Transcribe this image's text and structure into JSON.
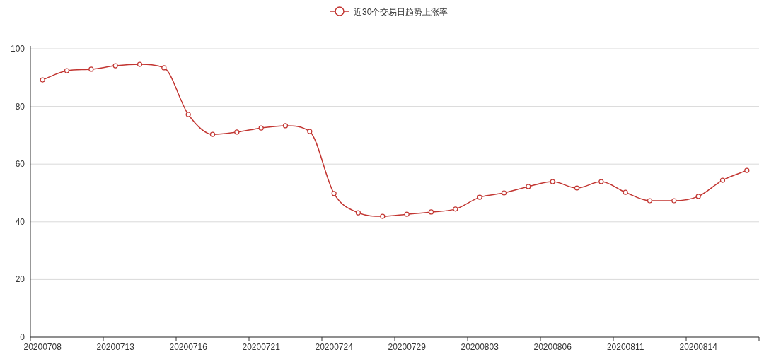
{
  "chart_data": {
    "type": "line",
    "categories": [
      "20200708",
      null,
      null,
      "20200713",
      null,
      null,
      "20200716",
      null,
      null,
      "20200721",
      null,
      null,
      "20200724",
      null,
      null,
      "20200729",
      null,
      null,
      "20200803",
      null,
      null,
      "20200806",
      null,
      null,
      "20200811",
      null,
      null,
      "20200814",
      null,
      null
    ],
    "series": [
      {
        "name": "近30个交易日趋势上涨率",
        "color": "#c23531",
        "values": [
          89.2,
          92.4,
          92.9,
          94.1,
          94.6,
          93.4,
          77.2,
          70.3,
          71.1,
          72.5,
          73.3,
          71.3,
          49.8,
          43.1,
          41.9,
          42.6,
          43.4,
          44.4,
          48.5,
          50.0,
          52.2,
          53.9,
          51.7,
          53.9,
          50.2,
          47.3,
          47.3,
          48.8,
          54.4,
          57.8
        ]
      }
    ],
    "ylim": [
      0,
      100
    ],
    "yticks": [
      0,
      20,
      40,
      60,
      80,
      100
    ],
    "grid": "y",
    "legend": "top",
    "marker": "circle",
    "line_style": "solid"
  }
}
